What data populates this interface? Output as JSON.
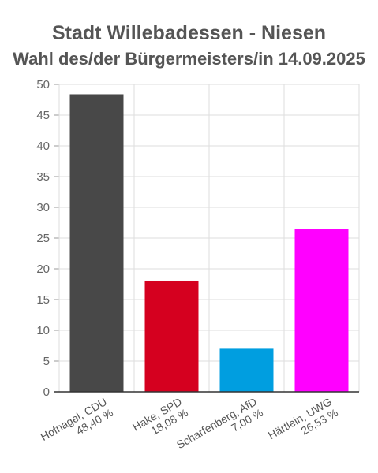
{
  "chart_data": {
    "type": "bar",
    "title": "Stadt Willebadessen - Niesen",
    "subtitle": "Wahl des/der Bürgermeisters/in 14.09.2025",
    "categories": [
      [
        "Hofnagel, CDU",
        "48,40 %"
      ],
      [
        "Hake, SPD",
        "18,08 %"
      ],
      [
        "Scharfenberg, AfD",
        "7,00 %"
      ],
      [
        "Härtlein, UWG",
        "26,53 %"
      ]
    ],
    "values": [
      48.4,
      18.08,
      7.0,
      26.53
    ],
    "colors": [
      "#484848",
      "#d5001f",
      "#009ee0",
      "#ff00ff"
    ],
    "ylim": [
      0,
      50
    ],
    "yticks": [
      "0",
      "5",
      "10",
      "15",
      "20",
      "25",
      "30",
      "35",
      "40",
      "45",
      "50"
    ],
    "grid": true,
    "legend": "none"
  }
}
